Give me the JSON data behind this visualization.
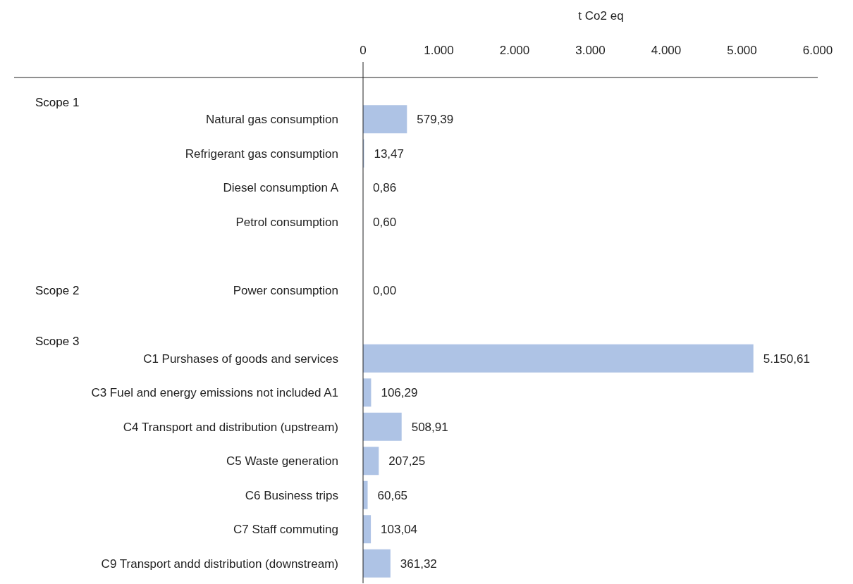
{
  "chart_data": {
    "type": "bar",
    "orientation": "horizontal",
    "xlabel": "t Co2 eq",
    "categories": [
      "Natural gas consumption",
      "Refrigerant gas consumption",
      "Diesel consumption A",
      "Petrol consumption",
      null,
      "Power consumption",
      null,
      "C1 Purshases of goods and services",
      "C3 Fuel and energy emissions not included A1",
      "C4 Transport and distribution (upstream)",
      "C5 Waste generation",
      "C6 Business trips",
      "C7 Staff commuting",
      "C9 Transport andd distribution (downstream)"
    ],
    "values": [
      579.39,
      13.47,
      0.86,
      0.6,
      null,
      0,
      null,
      5150.61,
      106.29,
      508.91,
      207.25,
      60.65,
      103.04,
      361.32
    ],
    "value_labels": [
      "579,39",
      "13,47",
      "0,86",
      "0,60",
      null,
      "0,00",
      null,
      "5.150,61",
      "106,29",
      "508,91",
      "207,25",
      "60,65",
      "103,04",
      "361,32"
    ],
    "color": "#aec3e5",
    "xlim": [
      0,
      6000
    ],
    "xticks": [
      0,
      {
        "value": 1000,
        "label": "1.000"
      },
      {
        "value": 2000,
        "label": "2.000"
      },
      {
        "value": 3000,
        "label": "3.000"
      },
      {
        "value": 4000,
        "label": "4.000"
      },
      {
        "value": 5000,
        "label": "5.000"
      },
      {
        "value": 6000,
        "label": "6.000"
      }
    ],
    "annotations": [
      "Scope 1",
      "Scope 2",
      "Scope 3"
    ],
    "grid": false
  }
}
